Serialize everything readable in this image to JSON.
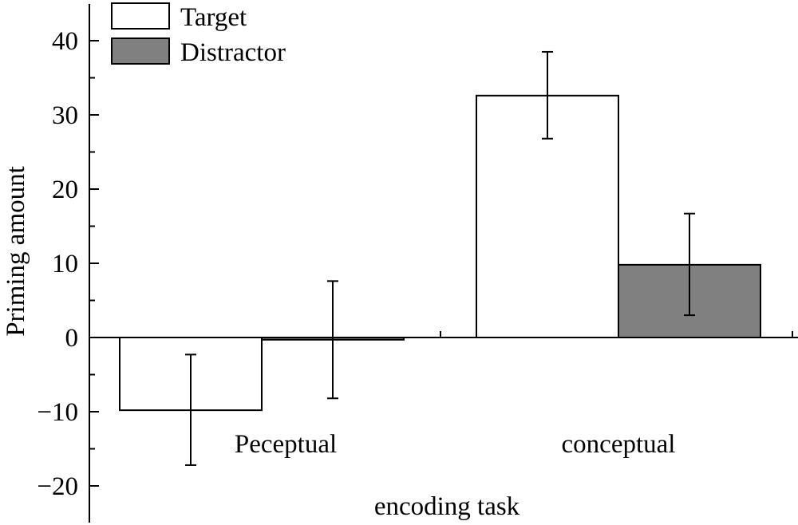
{
  "chart_data": {
    "type": "bar",
    "title": "",
    "xlabel": "encoding task",
    "ylabel": "Priming amount",
    "categories": [
      "Peceptual",
      "conceptual"
    ],
    "series": [
      {
        "name": "Target",
        "color": "#ffffff",
        "values": [
          -9.8,
          32.6
        ],
        "error_low": [
          -17.2,
          26.8
        ],
        "error_high": [
          -2.3,
          38.5
        ]
      },
      {
        "name": "Distractor",
        "color": "#808080",
        "values": [
          -0.3,
          9.8
        ],
        "error_low": [
          -8.2,
          3.0
        ],
        "error_high": [
          7.6,
          16.7
        ]
      }
    ],
    "ylim": [
      -25,
      45
    ],
    "yticks": [
      -20,
      -10,
      0,
      10,
      20,
      30,
      40
    ],
    "ytick_labels": [
      "−20",
      "−10",
      "0",
      "10",
      "20",
      "30",
      "40"
    ],
    "legend_position": "top-left",
    "grid": false
  }
}
